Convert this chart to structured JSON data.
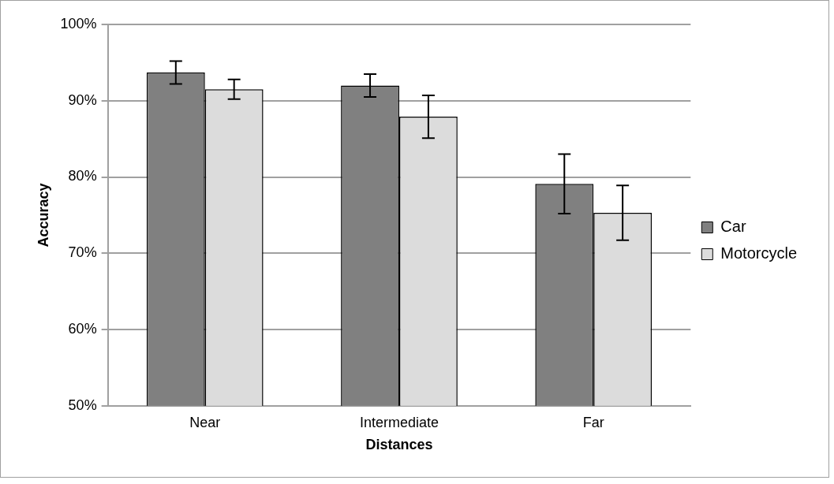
{
  "chart_data": {
    "type": "bar",
    "xlabel": "Distances",
    "ylabel": "Accuracy",
    "categories": [
      "Near",
      "Intermediate",
      "Far"
    ],
    "series": [
      {
        "name": "Car",
        "color": "#808080",
        "values": [
          93.7,
          92.0,
          79.1
        ],
        "errors": [
          1.5,
          1.5,
          3.9
        ]
      },
      {
        "name": "Motorcycle",
        "color": "#dcdcdc",
        "values": [
          91.5,
          87.9,
          75.3
        ],
        "errors": [
          1.3,
          2.8,
          3.6
        ]
      }
    ],
    "ylim": [
      50,
      100
    ],
    "yticks": [
      {
        "value": 50,
        "label": "50%"
      },
      {
        "value": 60,
        "label": "60%"
      },
      {
        "value": 70,
        "label": "70%"
      },
      {
        "value": 80,
        "label": "80%"
      },
      {
        "value": 90,
        "label": "90%"
      },
      {
        "value": 100,
        "label": "100%"
      }
    ],
    "grid": "y",
    "legend": "right"
  }
}
